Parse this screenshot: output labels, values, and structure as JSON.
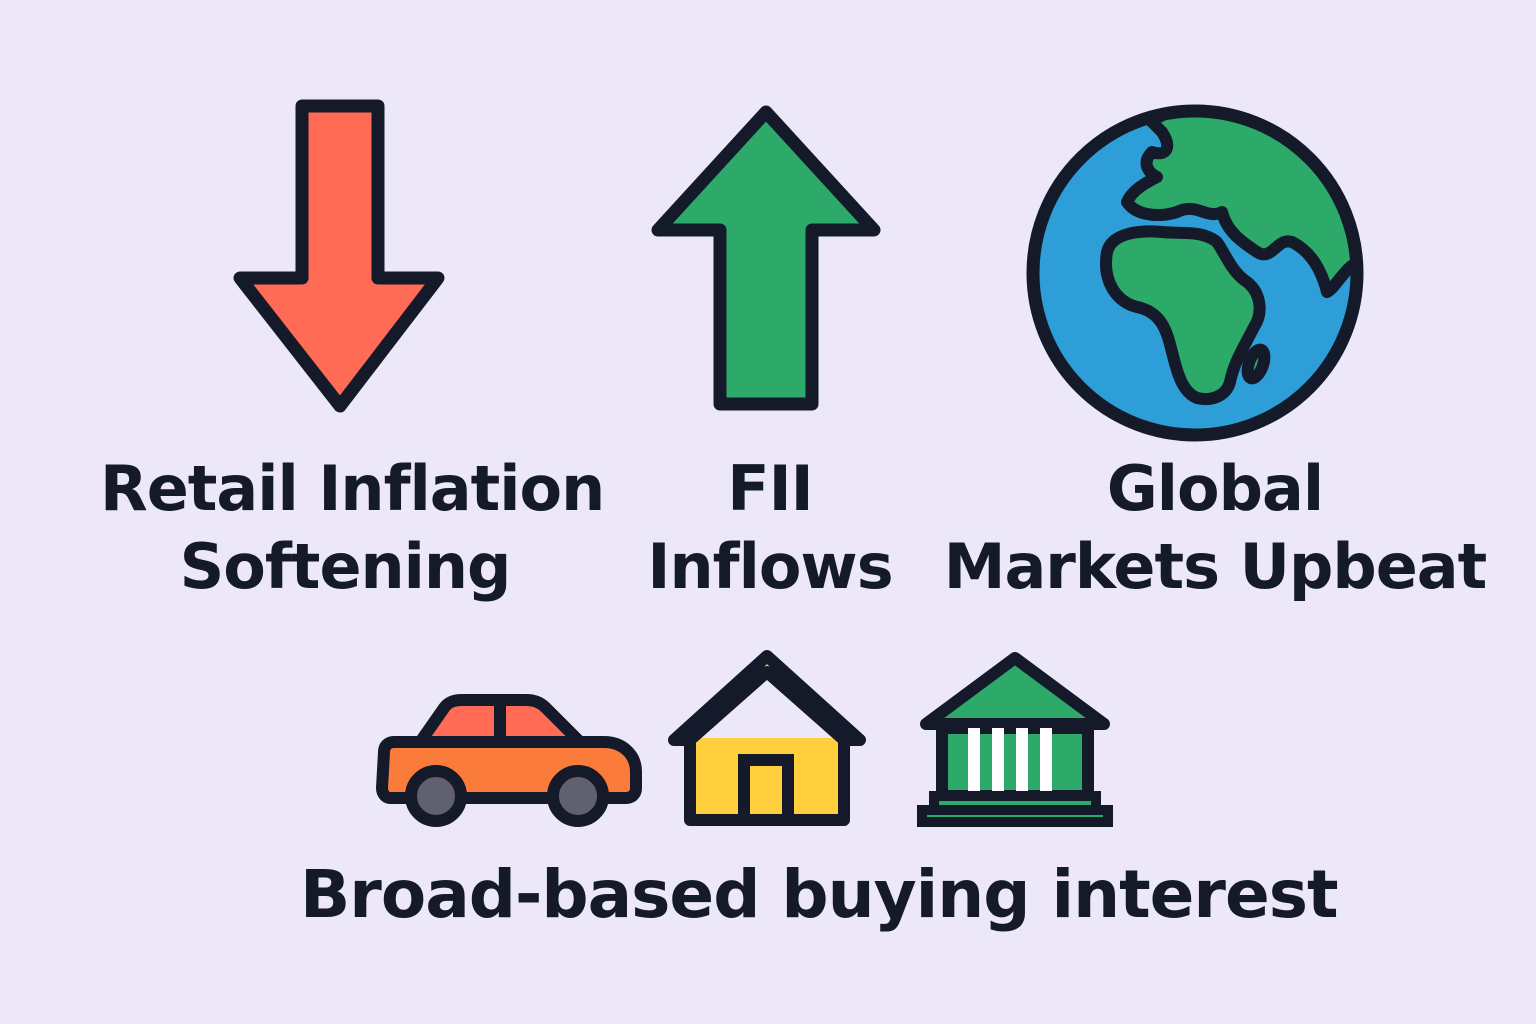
{
  "factors": [
    {
      "icon": "down-arrow-icon",
      "color": "#FF6B55",
      "lines": [
        "Retail Inflation",
        "Softening"
      ]
    },
    {
      "icon": "up-arrow-icon",
      "color": "#2DAA6A",
      "lines": [
        "FII",
        "Inflows"
      ]
    },
    {
      "icon": "globe-icon",
      "colors": {
        "ocean": "#2E9ED8",
        "land": "#2DAA6A"
      },
      "lines": [
        "Global",
        "Markets Upbeat"
      ]
    }
  ],
  "sectors": {
    "icons": [
      {
        "icon": "car-icon",
        "colors": {
          "body": "#FB7B3A",
          "roof": "#FF6B55",
          "wheels": "#606070"
        }
      },
      {
        "icon": "house-icon",
        "colors": {
          "body": "#FFCF3D"
        }
      },
      {
        "icon": "bank-icon",
        "colors": {
          "body": "#2DAA6A"
        }
      }
    ],
    "caption": "Broad-based buying interest"
  },
  "colors": {
    "background": "#ECE8FA",
    "outline": "#141A2A",
    "text": "#141A2A"
  }
}
